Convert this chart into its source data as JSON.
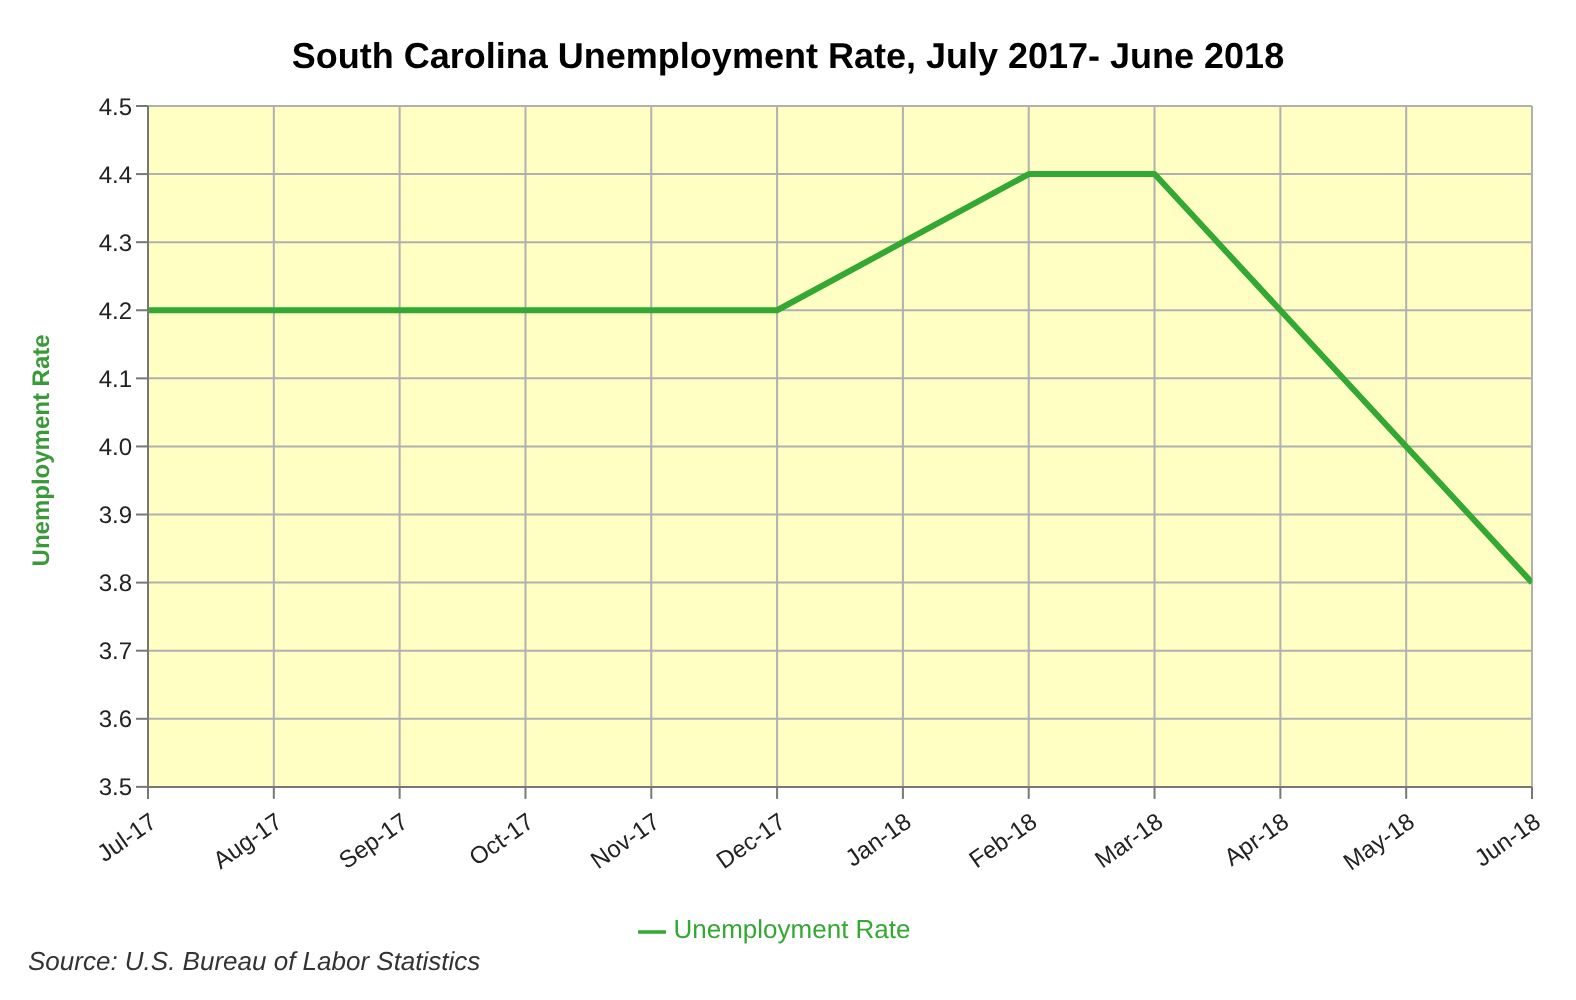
{
  "chart_data": {
    "type": "line",
    "title": "South Carolina Unemployment Rate, July 2017- June 2018",
    "ylabel": "Unemployment Rate",
    "categories": [
      "Jul-17",
      "Aug-17",
      "Sep-17",
      "Oct-17",
      "Nov-17",
      "Dec-17",
      "Jan-18",
      "Feb-18",
      "Mar-18",
      "Apr-18",
      "May-18",
      "Jun-18"
    ],
    "series": [
      {
        "name": "Unemployment Rate",
        "color": "#33a833",
        "values": [
          4.2,
          4.2,
          4.2,
          4.2,
          4.2,
          4.2,
          4.3,
          4.4,
          4.4,
          4.2,
          4.0,
          3.8
        ]
      }
    ],
    "ylim": [
      3.5,
      4.5
    ],
    "yticks": [
      3.5,
      3.6,
      3.7,
      3.8,
      3.9,
      {
        "value": 4,
        "label": "4.0"
      },
      4.1,
      4.2,
      4.3,
      4.4,
      4.5
    ],
    "grid": true,
    "legend": "bottom",
    "marker": "none",
    "line_style": "solid",
    "annotations": [
      "Source: U.S. Bureau of Labor Statistics"
    ]
  }
}
